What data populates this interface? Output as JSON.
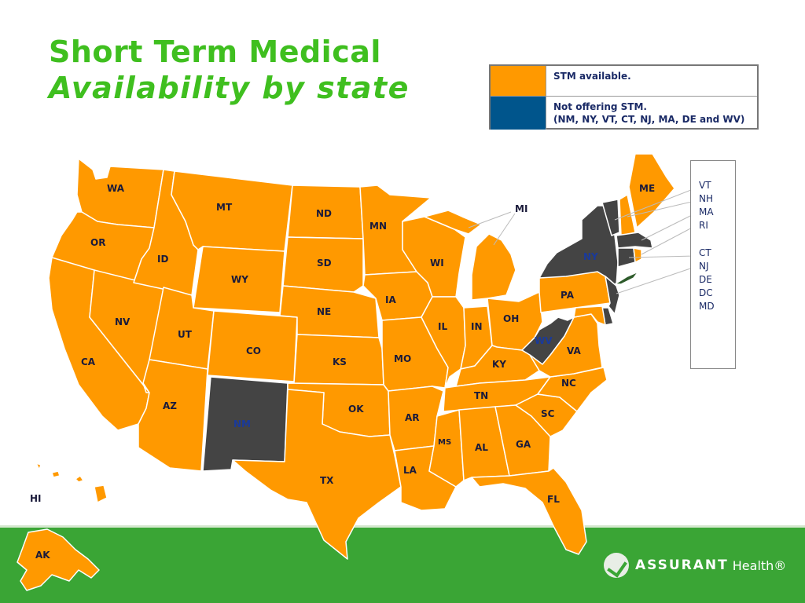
{
  "title": {
    "line1": "Short Term Medical",
    "line2": "Availability by state"
  },
  "legend": {
    "available_color": "#FF9900",
    "not_offering_color": "#00558C",
    "available_text": "STM available.",
    "not_offering_text": "Not offering STM.",
    "not_offering_list": "(NM, NY, VT, CT, NJ, MA, DE and WV)"
  },
  "colors": {
    "orange": "#FF9900",
    "dark": "#444444",
    "green": "#3AA535",
    "title": "#3FBF1F"
  },
  "states": {
    "WA": "WA",
    "OR": "OR",
    "CA": "CA",
    "NV": "NV",
    "ID": "ID",
    "MT": "MT",
    "WY": "WY",
    "UT": "UT",
    "AZ": "AZ",
    "CO": "CO",
    "NM": "NM",
    "ND": "ND",
    "SD": "SD",
    "NE": "NE",
    "KS": "KS",
    "OK": "OK",
    "TX": "TX",
    "MN": "MN",
    "IA": "IA",
    "MO": "MO",
    "AR": "AR",
    "LA": "LA",
    "WI": "WI",
    "IL": "IL",
    "MI": "MI",
    "IN": "IN",
    "OH": "OH",
    "KY": "KY",
    "TN": "TN",
    "MS": "MS",
    "AL": "AL",
    "GA": "GA",
    "FL": "FL",
    "SC": "SC",
    "NC": "NC",
    "VA": "VA",
    "WV": "WV",
    "PA": "PA",
    "NY": "NY",
    "ME": "ME",
    "HI": "HI",
    "AK": "AK"
  },
  "northeast_labels": [
    "VT",
    "NH",
    "MA",
    "RI",
    "CT",
    "NJ",
    "DE",
    "DC",
    "MD"
  ],
  "status": {
    "not_offering": [
      "NM",
      "NY",
      "VT",
      "CT",
      "NJ",
      "MA",
      "DE",
      "WV"
    ]
  },
  "brand": {
    "name": "ASSURANT",
    "suffix": "Health®"
  }
}
